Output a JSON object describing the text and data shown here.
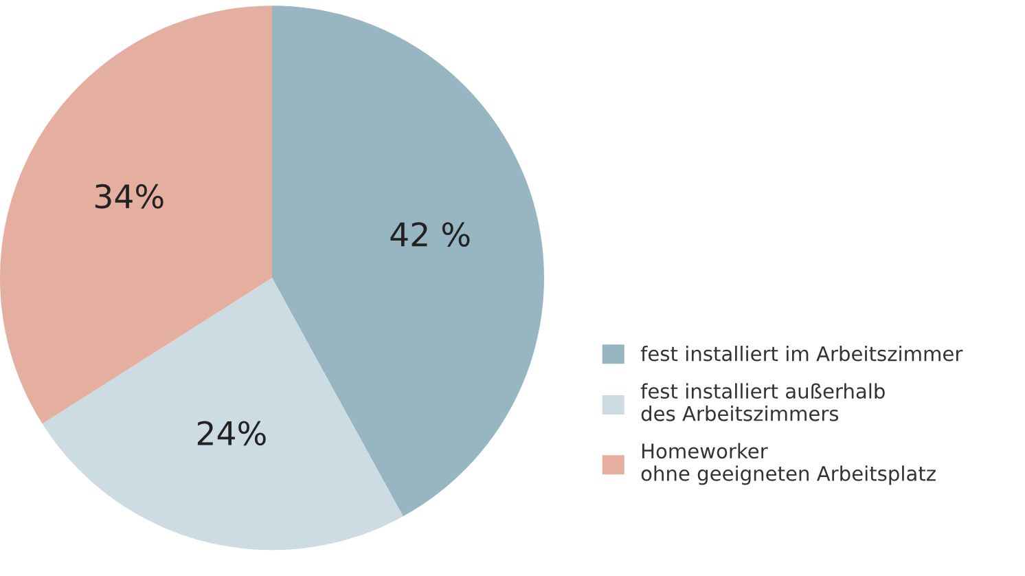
{
  "chart_data": {
    "type": "pie",
    "categories": [
      "fest installiert im Arbeitszimmer",
      "fest installiert außerhalb\ndes Arbeitszimmers",
      "Homeworker\nohne geeigneten Arbeitsplatz"
    ],
    "values": [
      42,
      24,
      34
    ],
    "colors": [
      "#97b6c1",
      "#cddce2",
      "#e4afa0"
    ],
    "value_labels": [
      "42 %",
      "24%",
      "34%"
    ],
    "legend": "right"
  }
}
